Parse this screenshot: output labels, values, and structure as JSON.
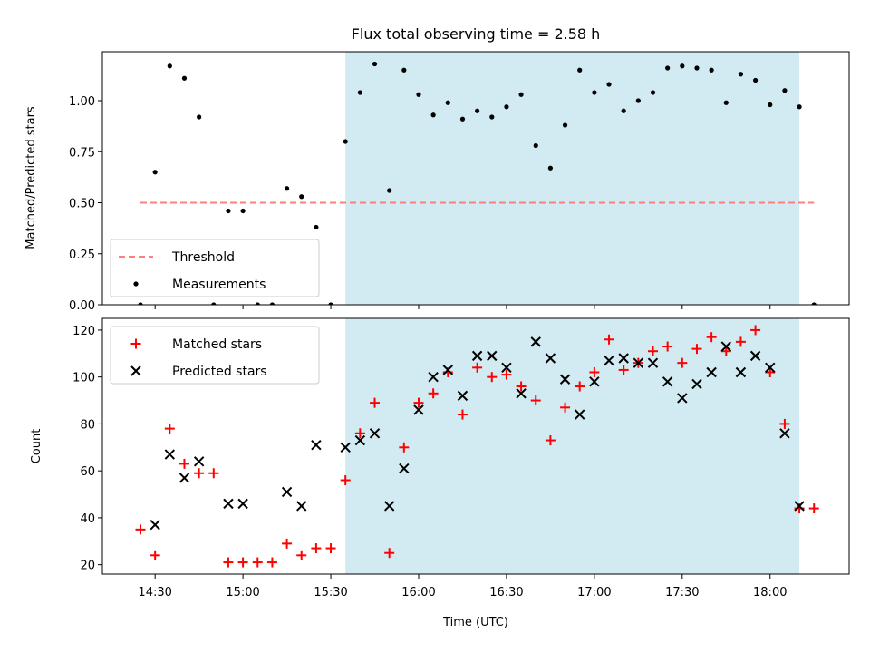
{
  "title": "Flux total observing time = 2.58 h",
  "x_axis": {
    "label": "Time (UTC)",
    "ticks": [
      "14:30",
      "15:00",
      "15:30",
      "16:00",
      "16:30",
      "17:00",
      "17:30",
      "18:00"
    ]
  },
  "colors": {
    "span": "#add8e6",
    "threshold": "#ff7f7f",
    "measurements": "#000000",
    "matched": "#ff0000",
    "predicted": "#000000"
  },
  "chart_data": [
    {
      "type": "scatter",
      "ylabel": "Matched/Predicted stars",
      "xlim": [
        "14:12",
        "18:27"
      ],
      "ylim": [
        0,
        1.24
      ],
      "y_ticks": [
        "0.00",
        "0.25",
        "0.50",
        "0.75",
        "1.00"
      ],
      "span": {
        "start": "15:35",
        "end": "18:10"
      },
      "threshold": {
        "name": "Threshold",
        "value": 0.5,
        "x_range": [
          "14:25",
          "18:15"
        ]
      },
      "legend": {
        "location": "lower left",
        "entries": [
          "Threshold",
          "Measurements"
        ]
      },
      "series": [
        {
          "name": "Measurements",
          "marker": "dot",
          "x": [
            "14:25",
            "14:30",
            "14:35",
            "14:40",
            "14:45",
            "14:50",
            "14:55",
            "15:00",
            "15:05",
            "15:10",
            "15:15",
            "15:20",
            "15:25",
            "15:30",
            "15:35",
            "15:40",
            "15:45",
            "15:50",
            "15:55",
            "16:00",
            "16:05",
            "16:10",
            "16:15",
            "16:20",
            "16:25",
            "16:30",
            "16:35",
            "16:40",
            "16:45",
            "16:50",
            "16:55",
            "17:00",
            "17:05",
            "17:10",
            "17:15",
            "17:20",
            "17:25",
            "17:30",
            "17:35",
            "17:40",
            "17:45",
            "17:50",
            "17:55",
            "18:00",
            "18:05",
            "18:10",
            "18:15"
          ],
          "y": [
            0.0,
            0.65,
            1.17,
            1.11,
            0.92,
            0.0,
            0.46,
            0.46,
            0.0,
            0.0,
            0.57,
            0.53,
            0.38,
            0.0,
            0.8,
            1.04,
            1.18,
            0.56,
            1.15,
            1.03,
            0.93,
            0.99,
            0.91,
            0.95,
            0.92,
            0.97,
            1.03,
            0.78,
            0.67,
            0.88,
            1.15,
            1.04,
            1.08,
            0.95,
            1.0,
            1.04,
            1.16,
            1.17,
            1.16,
            1.15,
            0.99,
            1.13,
            1.1,
            0.98,
            1.05,
            0.97,
            0.0
          ]
        }
      ]
    },
    {
      "type": "scatter",
      "ylabel": "Count",
      "xlabel": "Time (UTC)",
      "xlim": [
        "14:12",
        "18:27"
      ],
      "ylim": [
        16,
        125
      ],
      "y_ticks": [
        "20",
        "40",
        "60",
        "80",
        "100",
        "120"
      ],
      "span": {
        "start": "15:35",
        "end": "18:10"
      },
      "legend": {
        "location": "upper left",
        "entries": [
          "Matched stars",
          "Predicted stars"
        ]
      },
      "series": [
        {
          "name": "Matched stars",
          "marker": "+",
          "x": [
            "14:25",
            "14:30",
            "14:35",
            "14:40",
            "14:45",
            "14:50",
            "14:55",
            "15:00",
            "15:05",
            "15:10",
            "15:15",
            "15:20",
            "15:25",
            "15:30",
            "15:35",
            "15:40",
            "15:45",
            "15:50",
            "15:55",
            "16:00",
            "16:05",
            "16:10",
            "16:15",
            "16:20",
            "16:25",
            "16:30",
            "16:35",
            "16:40",
            "16:45",
            "16:50",
            "16:55",
            "17:00",
            "17:05",
            "17:10",
            "17:15",
            "17:20",
            "17:25",
            "17:30",
            "17:35",
            "17:40",
            "17:45",
            "17:50",
            "17:55",
            "18:00",
            "18:05",
            "18:10",
            "18:15"
          ],
          "y": [
            35,
            24,
            78,
            63,
            59,
            59,
            21,
            21,
            21,
            21,
            29,
            24,
            27,
            27,
            56,
            76,
            89,
            25,
            70,
            89,
            93,
            102,
            84,
            104,
            100,
            101,
            96,
            90,
            73,
            87,
            96,
            102,
            116,
            103,
            106,
            111,
            113,
            106,
            112,
            117,
            111,
            115,
            120,
            102,
            80,
            44,
            44
          ]
        },
        {
          "name": "Predicted stars",
          "marker": "x",
          "x": [
            "14:30",
            "14:35",
            "14:40",
            "14:45",
            "14:55",
            "15:00",
            "15:15",
            "15:20",
            "15:25",
            "15:35",
            "15:40",
            "15:45",
            "15:50",
            "15:55",
            "16:00",
            "16:05",
            "16:10",
            "16:15",
            "16:20",
            "16:25",
            "16:30",
            "16:35",
            "16:40",
            "16:45",
            "16:50",
            "16:55",
            "17:00",
            "17:05",
            "17:10",
            "17:15",
            "17:20",
            "17:25",
            "17:30",
            "17:35",
            "17:40",
            "17:45",
            "17:50",
            "17:55",
            "18:00",
            "18:05",
            "18:10"
          ],
          "y": [
            37,
            67,
            57,
            64,
            46,
            46,
            51,
            45,
            71,
            70,
            73,
            76,
            45,
            61,
            86,
            100,
            103,
            92,
            109,
            109,
            104,
            93,
            115,
            108,
            99,
            84,
            98,
            107,
            108,
            106,
            106,
            98,
            91,
            97,
            102,
            113,
            102,
            109,
            104,
            76,
            45
          ]
        }
      ]
    }
  ]
}
